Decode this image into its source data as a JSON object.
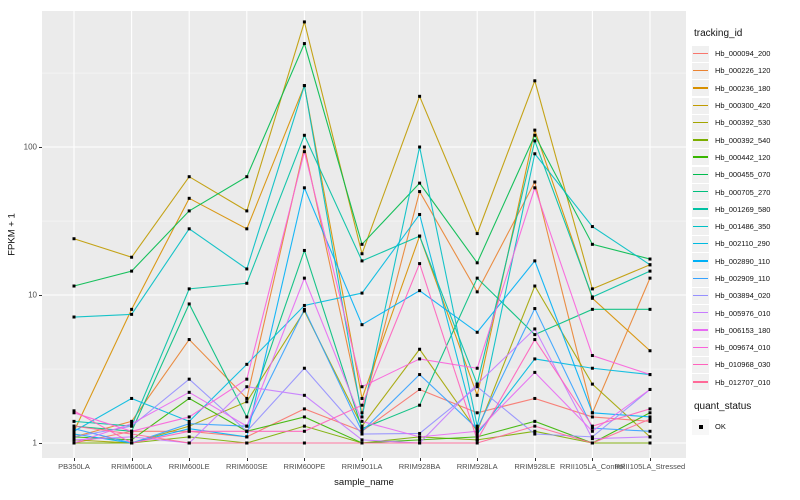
{
  "figure": {
    "background": "#FFFFFF",
    "panel_background": "#EBEBEB",
    "grid_color": "#FFFFFF",
    "axis_text_color": "#4D4D4D",
    "point_color": "#000000"
  },
  "axes": {
    "y_title": "FPKM + 1",
    "x_title": "sample_name",
    "y_tick_labels": [
      "100",
      "10",
      "1"
    ]
  },
  "legend": {
    "tracking_title": "tracking_id",
    "quant_title": "quant_status",
    "quant_ok_label": "OK"
  },
  "chart_data": {
    "type": "line",
    "title": "",
    "xlabel": "sample_name",
    "ylabel": "FPKM + 1",
    "y_scale": "log10",
    "y_ticks": [
      1,
      10,
      100
    ],
    "y_minor_ticks": [
      3.16,
      31.6,
      316
    ],
    "ylim": [
      0.79,
      1000
    ],
    "grid": true,
    "legend_position": "right",
    "point_marker": "black-square",
    "quant_status_legend": {
      "title": "quant_status",
      "items": [
        "OK"
      ]
    },
    "categories": [
      "PB350LA",
      "RRIM600LA",
      "RRIM600LE",
      "RRIM600SE",
      "RRIM600PE",
      "RRIM901LA",
      "RRIM928BA",
      "RRIM928LA",
      "RRIM928LE",
      "RRII105LA_Control",
      "RRII105LA_Stressed"
    ],
    "series": [
      {
        "name": "Hb_000094_200",
        "color": "#F8766D",
        "values": [
          1.0,
          1.2,
          1.2,
          1.1,
          1.7,
          1.2,
          2.3,
          1.6,
          2.0,
          1.5,
          1.4
        ]
      },
      {
        "name": "Hb_000226_120",
        "color": "#EA8331",
        "values": [
          1.1,
          1.4,
          5.0,
          2.0,
          100,
          1.6,
          50,
          10.5,
          58,
          1.6,
          13
        ]
      },
      {
        "name": "Hb_000236_180",
        "color": "#D89000",
        "values": [
          1.2,
          8.0,
          45,
          28,
          260,
          2.0,
          25,
          2.1,
          130,
          9.5,
          4.2
        ]
      },
      {
        "name": "Hb_000300_420",
        "color": "#C09B00",
        "values": [
          24,
          18,
          63,
          37,
          700,
          19,
          220,
          26,
          280,
          11,
          16
        ]
      },
      {
        "name": "Hb_000392_530",
        "color": "#A3A500",
        "values": [
          1.05,
          1.0,
          1.3,
          1.9,
          7.8,
          1.3,
          4.3,
          1.2,
          11.5,
          2.5,
          1.1
        ]
      },
      {
        "name": "Hb_000392_540",
        "color": "#7CAE00",
        "values": [
          1.0,
          1.0,
          1.1,
          1.0,
          1.3,
          1.0,
          1.1,
          1.05,
          1.2,
          1.0,
          1.0
        ]
      },
      {
        "name": "Hb_000442_120",
        "color": "#39B600",
        "values": [
          1.1,
          1.05,
          2.0,
          1.2,
          1.5,
          1.0,
          1.05,
          1.1,
          1.4,
          1.0,
          1.6
        ]
      },
      {
        "name": "Hb_000455_070",
        "color": "#00BB4E",
        "values": [
          11.5,
          14.5,
          37,
          63,
          500,
          22,
          57,
          16.5,
          120,
          22,
          17.5
        ]
      },
      {
        "name": "Hb_000705_270",
        "color": "#00BF7D",
        "values": [
          1.3,
          1.2,
          8.7,
          1.5,
          20,
          1.25,
          1.8,
          13,
          5.4,
          8.0,
          8.0
        ]
      },
      {
        "name": "Hb_001269_580",
        "color": "#00C1A3",
        "values": [
          1.4,
          1.3,
          11,
          12,
          120,
          17,
          25,
          2.5,
          110,
          9.7,
          14.5
        ]
      },
      {
        "name": "Hb_001486_350",
        "color": "#00BFC4",
        "values": [
          7.1,
          7.4,
          28,
          15,
          260,
          1.5,
          100,
          1.3,
          90,
          29,
          16
        ]
      },
      {
        "name": "Hb_002110_290",
        "color": "#00BAE0",
        "values": [
          1.2,
          2.0,
          1.4,
          3.4,
          8.5,
          10.3,
          35,
          1.15,
          3.7,
          3.2,
          2.9
        ]
      },
      {
        "name": "Hb_002890_110",
        "color": "#00B0F6",
        "values": [
          1.15,
          1.0,
          1.25,
          1.1,
          53,
          6.3,
          10.7,
          5.6,
          17,
          1.6,
          1.5
        ]
      },
      {
        "name": "Hb_002909_110",
        "color": "#35A2FF",
        "values": [
          1.25,
          1.0,
          1.35,
          1.3,
          8.0,
          1.2,
          2.9,
          1.25,
          8.1,
          1.26,
          1.2
        ]
      },
      {
        "name": "Hb_003894_020",
        "color": "#9590FF",
        "values": [
          1.1,
          1.3,
          2.7,
          1.2,
          3.2,
          1.15,
          1.16,
          2.4,
          1.15,
          1.1,
          2.3
        ]
      },
      {
        "name": "Hb_005976_010",
        "color": "#C77CFF",
        "values": [
          1.05,
          1.1,
          1.0,
          2.4,
          2.1,
          1.05,
          1.0,
          2.5,
          5.9,
          1.07,
          1.1
        ]
      },
      {
        "name": "Hb_006153_180",
        "color": "#E76BF3",
        "values": [
          1.0,
          1.35,
          2.2,
          1.3,
          13,
          1.4,
          1.1,
          1.2,
          3.0,
          1.2,
          2.3
        ]
      },
      {
        "name": "Hb_009674_010",
        "color": "#FA62DB",
        "values": [
          1.6,
          1.2,
          1.5,
          2.7,
          93,
          2.4,
          3.7,
          3.2,
          53,
          3.9,
          2.9
        ]
      },
      {
        "name": "Hb_010968_030",
        "color": "#FF62BC",
        "values": [
          1.65,
          1.0,
          1.2,
          1.2,
          1.2,
          1.8,
          16.3,
          1.05,
          5.0,
          1.3,
          1.7
        ]
      },
      {
        "name": "Hb_012707_010",
        "color": "#FF6A98",
        "values": [
          1.3,
          1.15,
          1.0,
          1.0,
          1.0,
          1.0,
          1.0,
          1.0,
          1.3,
          1.0,
          1.45
        ]
      }
    ]
  }
}
